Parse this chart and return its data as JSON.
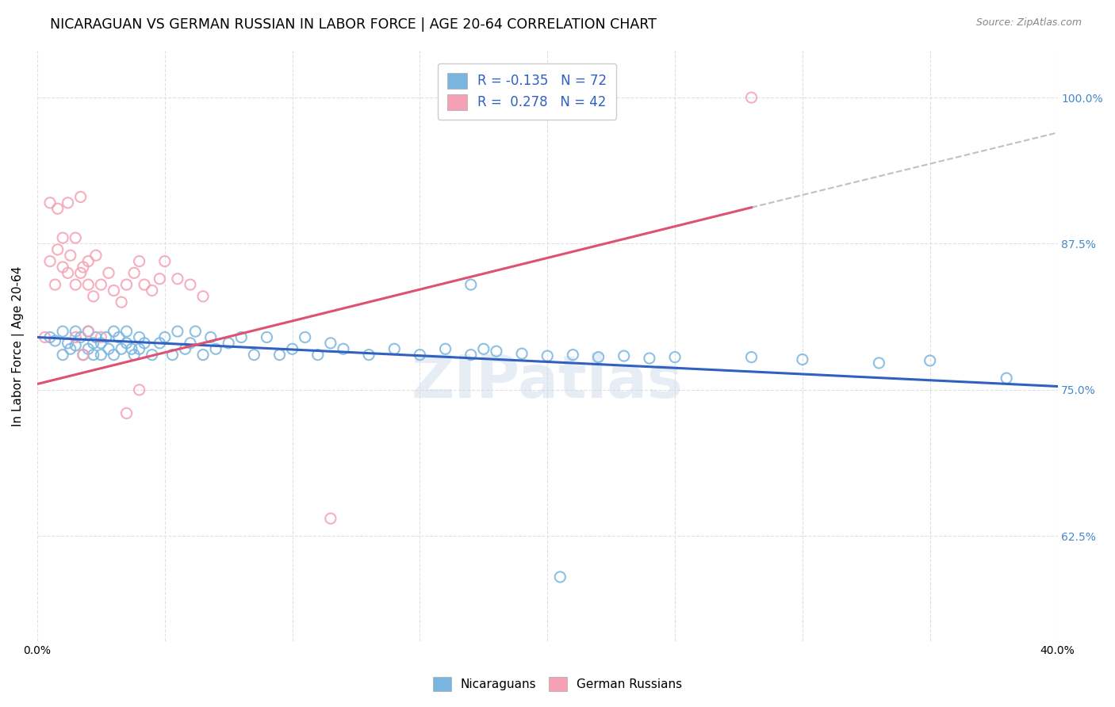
{
  "title": "NICARAGUAN VS GERMAN RUSSIAN IN LABOR FORCE | AGE 20-64 CORRELATION CHART",
  "source": "Source: ZipAtlas.com",
  "ylabel": "In Labor Force | Age 20-64",
  "xlim": [
    0.0,
    0.4
  ],
  "ylim": [
    0.535,
    1.04
  ],
  "yticks": [
    0.625,
    0.75,
    0.875,
    1.0
  ],
  "ytick_labels": [
    "62.5%",
    "75.0%",
    "87.5%",
    "100.0%"
  ],
  "xticks": [
    0.0,
    0.05,
    0.1,
    0.15,
    0.2,
    0.25,
    0.3,
    0.35,
    0.4
  ],
  "xtick_labels": [
    "0.0%",
    "",
    "",
    "",
    "",
    "",
    "",
    "",
    "40.0%"
  ],
  "blue_color": "#7AB5E0",
  "pink_color": "#F5A0B5",
  "blue_line_color": "#3060C0",
  "pink_line_color": "#E05070",
  "dashed_line_color": "#C0C0C0",
  "watermark": "ZIPatlas",
  "bottom_legend_blue": "Nicaraguans",
  "bottom_legend_pink": "German Russians",
  "legend_blue_r": "-0.135",
  "legend_blue_n": "72",
  "legend_pink_r": "0.278",
  "legend_pink_n": "42",
  "blue_trend_x": [
    0.0,
    0.4
  ],
  "blue_trend_y": [
    0.795,
    0.753
  ],
  "pink_trend_x": [
    0.0,
    0.28
  ],
  "pink_trend_y": [
    0.755,
    0.906
  ],
  "dashed_trend_x": [
    0.28,
    0.4
  ],
  "dashed_trend_y": [
    0.906,
    0.97
  ],
  "grid_color": "#E0E0E0",
  "right_tick_color": "#4488CC",
  "title_fontsize": 12.5,
  "axis_label_fontsize": 11,
  "tick_fontsize": 10,
  "marker_size": 90,
  "blue_scatter_x": [
    0.005,
    0.007,
    0.01,
    0.01,
    0.012,
    0.013,
    0.015,
    0.015,
    0.017,
    0.018,
    0.02,
    0.02,
    0.022,
    0.022,
    0.023,
    0.025,
    0.025,
    0.027,
    0.028,
    0.03,
    0.03,
    0.032,
    0.033,
    0.035,
    0.035,
    0.037,
    0.038,
    0.04,
    0.04,
    0.042,
    0.045,
    0.048,
    0.05,
    0.053,
    0.055,
    0.058,
    0.06,
    0.062,
    0.065,
    0.068,
    0.07,
    0.075,
    0.08,
    0.085,
    0.09,
    0.095,
    0.1,
    0.105,
    0.11,
    0.115,
    0.12,
    0.13,
    0.14,
    0.15,
    0.16,
    0.17,
    0.175,
    0.18,
    0.19,
    0.2,
    0.21,
    0.22,
    0.23,
    0.24,
    0.25,
    0.28,
    0.3,
    0.33,
    0.35,
    0.38,
    0.17,
    0.205
  ],
  "blue_scatter_y": [
    0.795,
    0.792,
    0.8,
    0.78,
    0.79,
    0.785,
    0.788,
    0.8,
    0.795,
    0.78,
    0.8,
    0.785,
    0.79,
    0.78,
    0.795,
    0.79,
    0.78,
    0.795,
    0.785,
    0.8,
    0.78,
    0.795,
    0.785,
    0.79,
    0.8,
    0.785,
    0.78,
    0.795,
    0.785,
    0.79,
    0.78,
    0.79,
    0.795,
    0.78,
    0.8,
    0.785,
    0.79,
    0.8,
    0.78,
    0.795,
    0.785,
    0.79,
    0.795,
    0.78,
    0.795,
    0.78,
    0.785,
    0.795,
    0.78,
    0.79,
    0.785,
    0.78,
    0.785,
    0.78,
    0.785,
    0.78,
    0.785,
    0.783,
    0.781,
    0.779,
    0.78,
    0.778,
    0.779,
    0.777,
    0.778,
    0.778,
    0.776,
    0.773,
    0.775,
    0.76,
    0.84,
    0.59
  ],
  "pink_scatter_x": [
    0.003,
    0.005,
    0.007,
    0.008,
    0.01,
    0.01,
    0.012,
    0.013,
    0.015,
    0.015,
    0.017,
    0.018,
    0.02,
    0.02,
    0.022,
    0.023,
    0.025,
    0.028,
    0.03,
    0.033,
    0.035,
    0.038,
    0.04,
    0.042,
    0.045,
    0.048,
    0.05,
    0.055,
    0.06,
    0.065,
    0.015,
    0.018,
    0.02,
    0.025,
    0.035,
    0.04,
    0.005,
    0.012,
    0.008,
    0.017,
    0.28,
    0.115
  ],
  "pink_scatter_y": [
    0.795,
    0.86,
    0.84,
    0.87,
    0.855,
    0.88,
    0.85,
    0.865,
    0.84,
    0.88,
    0.85,
    0.855,
    0.84,
    0.86,
    0.83,
    0.865,
    0.84,
    0.85,
    0.835,
    0.825,
    0.84,
    0.85,
    0.86,
    0.84,
    0.835,
    0.845,
    0.86,
    0.845,
    0.84,
    0.83,
    0.795,
    0.78,
    0.8,
    0.795,
    0.73,
    0.75,
    0.91,
    0.91,
    0.905,
    0.915,
    1.0,
    0.64
  ]
}
